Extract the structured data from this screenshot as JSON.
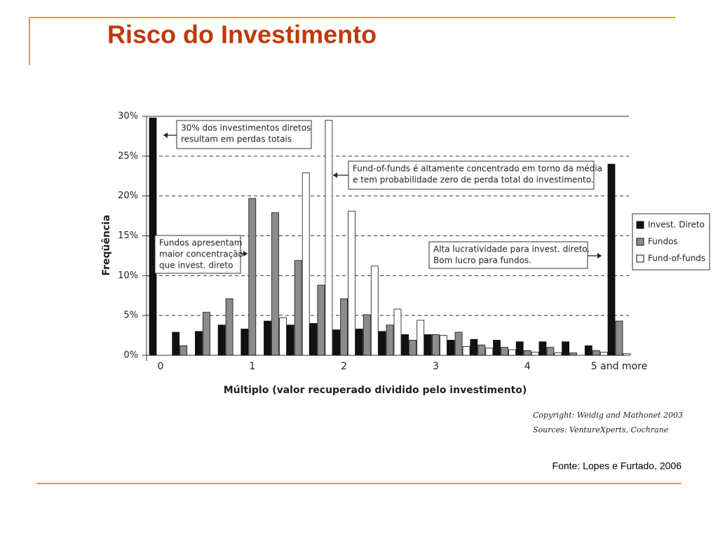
{
  "slide": {
    "title": "Risco do Investimento",
    "source": "Fonte: Lopes e Furtado, 2006"
  },
  "chart_data": {
    "type": "bar",
    "y_label": "Freqüência",
    "x_label": "Múltiplo (valor recuperado dividido pelo investimento)",
    "categories": [
      "0",
      null,
      null,
      null,
      "1",
      null,
      null,
      null,
      "2",
      null,
      null,
      null,
      "3",
      null,
      null,
      null,
      "4",
      null,
      null,
      null,
      "5 and more"
    ],
    "series": [
      {
        "name": "Invest. Direto",
        "color": "#111111",
        "values": [
          29.8,
          2.9,
          3.0,
          3.8,
          3.3,
          4.3,
          3.8,
          4.0,
          3.2,
          3.3,
          3.0,
          2.6,
          2.6,
          1.9,
          2.0,
          1.9,
          1.7,
          1.7,
          1.7,
          1.2,
          24.0
        ]
      },
      {
        "name": "Fundos",
        "color": "#8c8c8c",
        "values": [
          0,
          1.2,
          5.4,
          7.1,
          19.7,
          17.9,
          11.9,
          8.8,
          7.1,
          5.1,
          3.8,
          1.9,
          2.6,
          2.9,
          1.3,
          1.0,
          0.6,
          1.0,
          0.3,
          0.6,
          4.3
        ]
      },
      {
        "name": "Fund-of-funds",
        "color": "#ffffff",
        "values": [
          0,
          0,
          0,
          0,
          0,
          4.7,
          22.9,
          29.5,
          18.1,
          11.2,
          5.8,
          4.4,
          2.5,
          1.1,
          0.9,
          0.7,
          0.4,
          0.3,
          0,
          0.4,
          0.2
        ]
      }
    ],
    "ylim": [
      0,
      30
    ],
    "yticks": [
      {
        "value": 0,
        "label": "0%"
      },
      {
        "value": 5,
        "label": "5%"
      },
      {
        "value": 10,
        "label": "10%"
      },
      {
        "value": 15,
        "label": "15%"
      },
      {
        "value": 20,
        "label": "20%"
      },
      {
        "value": 25,
        "label": "25%"
      },
      {
        "value": 30,
        "label": "30%"
      }
    ],
    "grid": true,
    "legend": "right",
    "annotations": [
      {
        "lines": [
          "30% dos investimentos diretos",
          "resultam em perdas totais"
        ]
      },
      {
        "lines": [
          "Fund-of-funds é altamente concentrado em torno da média",
          "e tem probabilidade zero de perda total do investimento."
        ]
      },
      {
        "lines": [
          "Fundos apresentam",
          "maior concentração",
          "que invest. direto"
        ]
      },
      {
        "lines": [
          "Alta lucratividade para invest. direto.",
          "Bom lucro para fundos."
        ]
      }
    ],
    "notes": [
      "Copyright: Weidig and Mathonet 2003",
      "Sources: VentureXperts, Cochrane"
    ]
  }
}
